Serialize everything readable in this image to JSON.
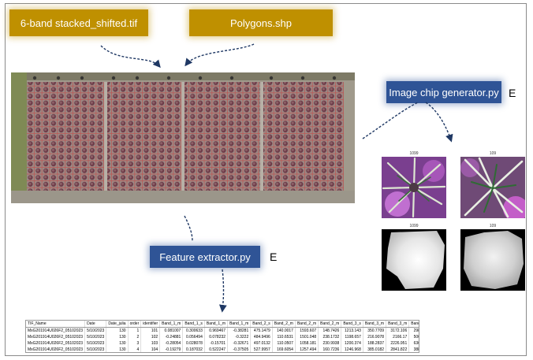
{
  "inputs": {
    "tif_label": "6-band stacked_shifted.tif",
    "shp_label": "Polygons.shp"
  },
  "processes": {
    "chip_generator_label": "Image chip generator.py",
    "chip_generator_badge": "E",
    "feature_extractor_label": "Feature extractor.py",
    "feature_extractor_badge": "E"
  },
  "chips": {
    "top_left_title": "1099",
    "top_right_title": "109",
    "bottom_left_title": "1099",
    "bottom_right_title": "109"
  },
  "table": {
    "headers": [
      "TIF_Name",
      "Date",
      "Date_julia",
      "order",
      "identifier",
      "Band_1_m",
      "Band_1_s",
      "Band_1_m",
      "Band_1_m",
      "Band_2_s",
      "Band_2_m",
      "Band_2_m",
      "Band_2_m",
      "Band_3_s",
      "Band_3_m",
      "Band_3_m",
      "Band_3_m"
    ],
    "rows": [
      [
        "MxG201914U026F2_05102023",
        "5/10/2023",
        "130",
        "1",
        "101",
        "0.081007",
        "0.300633",
        "0.969467",
        "-0.38281",
        "475.1479",
        "140.0017",
        "1593.607",
        "148.7426",
        "1213.143",
        "350.7709",
        "3172.106",
        "298.2275"
      ],
      [
        "MxG201914U026F2_05102023",
        "5/10/2023",
        "130",
        "2",
        "102",
        "-0.24881",
        "0.056494",
        "0.078232",
        "-0.3222",
        "484.9496",
        "110.6531",
        "1501.048",
        "238.1732",
        "1198.657",
        "216.9078",
        "2166.17",
        "506.3288"
      ],
      [
        "MxG201914U026F2_05102023",
        "5/10/2023",
        "130",
        "3",
        "103",
        "-0.28054",
        "0.028078",
        "-0.15701",
        "-0.32671",
        "497.0132",
        "110.0507",
        "1058.181",
        "230.9938",
        "1200.374",
        "188.2837",
        "2226.951",
        "636.5295"
      ],
      [
        "MxG201914U026F2_05102023",
        "5/10/2023",
        "130",
        "4",
        "104",
        "-0.19279",
        "0.187032",
        "0.522247",
        "-0.37505",
        "527.9957",
        "169.6054",
        "1257.494",
        "160.7236",
        "1246.968",
        "385.0182",
        "2841.822",
        "388.7342"
      ]
    ]
  },
  "colors": {
    "input_box": "#bf9000",
    "process_box": "#2f5496",
    "arrow": "#1f3864",
    "grid": "#c0504d"
  },
  "icons": {
    "orthomosaic": "field-orthomosaic-image",
    "chip_rgb": "plant-rgb-chip",
    "chip_mask": "plant-grayscale-mask"
  }
}
